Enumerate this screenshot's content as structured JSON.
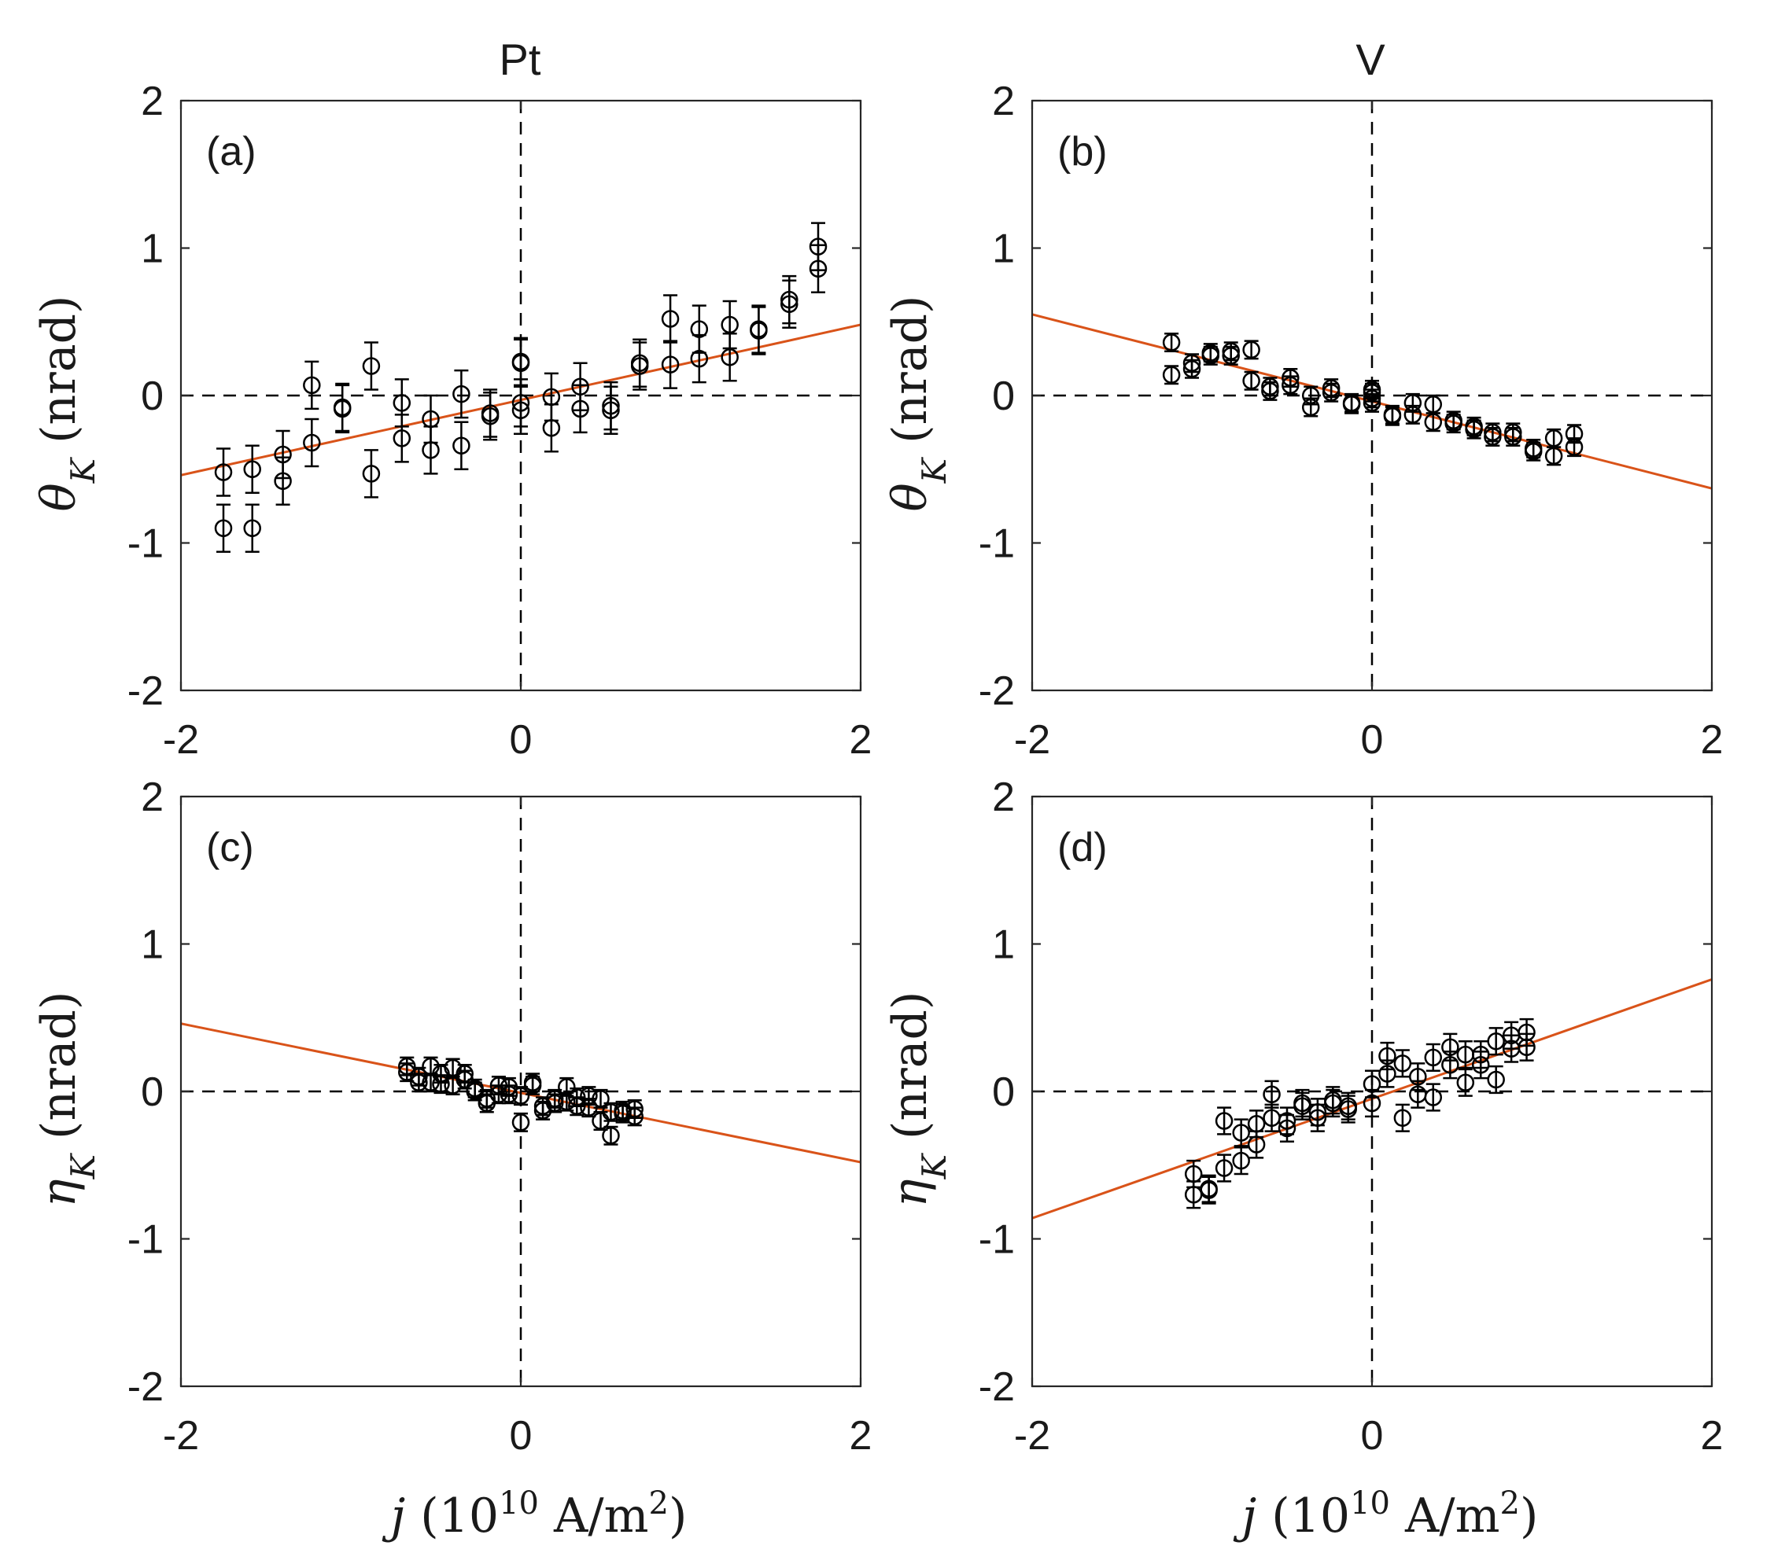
{
  "columns": [
    {
      "title": "Pt"
    },
    {
      "title": "V"
    }
  ],
  "x_axis_label": {
    "symbol": "j",
    "open": " (10",
    "exponent": "10",
    "mid": " A/m",
    "exponent2": "2",
    "close": ")"
  },
  "y_axis_labels": {
    "theta": {
      "symbol": "θ",
      "sub": "K",
      "unit": " (nrad)"
    },
    "eta": {
      "symbol": "η",
      "sub": "K",
      "unit": " (nrad)"
    }
  },
  "colors": {
    "fit": "#d95319",
    "data": "#000000",
    "reference": "#000000"
  },
  "chart_data": [
    {
      "type": "scatter",
      "panel": "(a)",
      "title": "Pt",
      "xlabel": "j (10^10 A/m^2)",
      "ylabel": "θK (nrad)",
      "xlim": [
        -2,
        2
      ],
      "ylim": [
        -2,
        2
      ],
      "xticks": [
        -2,
        0,
        2
      ],
      "yticks": [
        -2,
        -1,
        0,
        1,
        2
      ],
      "grid": false,
      "reference_lines": {
        "x": 0,
        "y": 0,
        "style": "dashed"
      },
      "fit": {
        "slope": 0.255,
        "intercept": -0.03
      },
      "error_bar": 0.16,
      "points": [
        [
          -1.75,
          -0.52
        ],
        [
          -1.75,
          -0.9
        ],
        [
          -1.58,
          -0.5
        ],
        [
          -1.58,
          -0.9
        ],
        [
          -1.4,
          -0.4
        ],
        [
          -1.4,
          -0.58
        ],
        [
          -1.23,
          0.07
        ],
        [
          -1.23,
          -0.32
        ],
        [
          -1.05,
          -0.08
        ],
        [
          -1.05,
          -0.09
        ],
        [
          -0.88,
          0.2
        ],
        [
          -0.88,
          -0.53
        ],
        [
          -0.7,
          -0.05
        ],
        [
          -0.7,
          -0.29
        ],
        [
          -0.53,
          -0.16
        ],
        [
          -0.53,
          -0.37
        ],
        [
          -0.35,
          0.01
        ],
        [
          -0.35,
          -0.34
        ],
        [
          -0.18,
          -0.12
        ],
        [
          -0.18,
          -0.14
        ],
        [
          0.0,
          0.22
        ],
        [
          0.0,
          0.23
        ],
        [
          0.0,
          -0.05
        ],
        [
          0.0,
          -0.1
        ],
        [
          0.18,
          -0.01
        ],
        [
          0.18,
          -0.22
        ],
        [
          0.35,
          0.06
        ],
        [
          0.35,
          -0.09
        ],
        [
          0.53,
          -0.07
        ],
        [
          0.53,
          -0.1
        ],
        [
          0.7,
          0.22
        ],
        [
          0.7,
          0.2
        ],
        [
          0.88,
          0.52
        ],
        [
          0.88,
          0.21
        ],
        [
          1.05,
          0.45
        ],
        [
          1.05,
          0.25
        ],
        [
          1.23,
          0.48
        ],
        [
          1.23,
          0.26
        ],
        [
          1.4,
          0.45
        ],
        [
          1.4,
          0.44
        ],
        [
          1.58,
          0.65
        ],
        [
          1.58,
          0.62
        ],
        [
          1.75,
          1.01
        ],
        [
          1.75,
          0.86
        ]
      ]
    },
    {
      "type": "scatter",
      "panel": "(b)",
      "title": "V",
      "xlabel": "j (10^10 A/m^2)",
      "ylabel": "θK (nrad)",
      "xlim": [
        -2,
        2
      ],
      "ylim": [
        -2,
        2
      ],
      "xticks": [
        -2,
        0,
        2
      ],
      "yticks": [
        -2,
        -1,
        0,
        1,
        2
      ],
      "grid": false,
      "reference_lines": {
        "x": 0,
        "y": 0,
        "style": "dashed"
      },
      "fit": {
        "slope": -0.295,
        "intercept": -0.04
      },
      "error_bar": 0.06,
      "points": [
        [
          -1.18,
          0.36
        ],
        [
          -1.18,
          0.14
        ],
        [
          -1.06,
          0.22
        ],
        [
          -1.06,
          0.18
        ],
        [
          -0.95,
          0.29
        ],
        [
          -0.95,
          0.27
        ],
        [
          -0.83,
          0.3
        ],
        [
          -0.83,
          0.27
        ],
        [
          -0.71,
          0.31
        ],
        [
          -0.71,
          0.1
        ],
        [
          -0.6,
          0.06
        ],
        [
          -0.6,
          0.03
        ],
        [
          -0.48,
          0.12
        ],
        [
          -0.48,
          0.07
        ],
        [
          -0.36,
          0.0
        ],
        [
          -0.36,
          -0.08
        ],
        [
          -0.24,
          0.05
        ],
        [
          -0.24,
          0.02
        ],
        [
          -0.12,
          -0.05
        ],
        [
          -0.12,
          -0.06
        ],
        [
          0.0,
          0.04
        ],
        [
          0.0,
          0.02
        ],
        [
          0.0,
          -0.02
        ],
        [
          0.0,
          -0.05
        ],
        [
          0.12,
          -0.13
        ],
        [
          0.12,
          -0.14
        ],
        [
          0.24,
          -0.05
        ],
        [
          0.24,
          -0.13
        ],
        [
          0.36,
          -0.06
        ],
        [
          0.36,
          -0.18
        ],
        [
          0.48,
          -0.17
        ],
        [
          0.48,
          -0.19
        ],
        [
          0.6,
          -0.21
        ],
        [
          0.6,
          -0.23
        ],
        [
          0.71,
          -0.25
        ],
        [
          0.71,
          -0.28
        ],
        [
          0.83,
          -0.25
        ],
        [
          0.83,
          -0.28
        ],
        [
          0.95,
          -0.36
        ],
        [
          0.95,
          -0.38
        ],
        [
          1.07,
          -0.29
        ],
        [
          1.07,
          -0.41
        ],
        [
          1.19,
          -0.26
        ],
        [
          1.19,
          -0.35
        ]
      ]
    },
    {
      "type": "scatter",
      "panel": "(c)",
      "title": "",
      "xlabel": "j (10^10 A/m^2)",
      "ylabel": "ηK (nrad)",
      "xlim": [
        -2,
        2
      ],
      "ylim": [
        -2,
        2
      ],
      "xticks": [
        -2,
        0,
        2
      ],
      "yticks": [
        -2,
        -1,
        0,
        1,
        2
      ],
      "grid": false,
      "reference_lines": {
        "x": 0,
        "y": 0,
        "style": "dashed"
      },
      "fit": {
        "slope": -0.235,
        "intercept": -0.01
      },
      "error_bar": 0.06,
      "points": [
        [
          -0.67,
          0.17
        ],
        [
          -0.67,
          0.13
        ],
        [
          -0.6,
          0.1
        ],
        [
          -0.6,
          0.06
        ],
        [
          -0.53,
          0.17
        ],
        [
          -0.53,
          0.06
        ],
        [
          -0.47,
          0.12
        ],
        [
          -0.47,
          0.05
        ],
        [
          -0.4,
          0.16
        ],
        [
          -0.4,
          0.04
        ],
        [
          -0.33,
          0.12
        ],
        [
          -0.33,
          0.08
        ],
        [
          -0.27,
          0.02
        ],
        [
          -0.27,
          0.0
        ],
        [
          -0.2,
          -0.08
        ],
        [
          -0.2,
          -0.05
        ],
        [
          -0.13,
          -0.02
        ],
        [
          -0.13,
          0.04
        ],
        [
          -0.07,
          0.03
        ],
        [
          -0.07,
          -0.02
        ],
        [
          0.0,
          -0.03
        ],
        [
          0.0,
          -0.21
        ],
        [
          0.07,
          0.06
        ],
        [
          0.07,
          0.04
        ],
        [
          0.13,
          -0.1
        ],
        [
          0.13,
          -0.13
        ],
        [
          0.2,
          -0.08
        ],
        [
          0.2,
          -0.05
        ],
        [
          0.27,
          0.03
        ],
        [
          0.27,
          -0.07
        ],
        [
          0.33,
          -0.04
        ],
        [
          0.33,
          -0.1
        ],
        [
          0.4,
          -0.03
        ],
        [
          0.4,
          -0.11
        ],
        [
          0.47,
          -0.2
        ],
        [
          0.47,
          -0.05
        ],
        [
          0.53,
          -0.3
        ],
        [
          0.53,
          -0.14
        ],
        [
          0.6,
          -0.13
        ],
        [
          0.6,
          -0.15
        ],
        [
          0.67,
          -0.12
        ],
        [
          0.67,
          -0.17
        ]
      ]
    },
    {
      "type": "scatter",
      "panel": "(d)",
      "title": "",
      "xlabel": "j (10^10 A/m^2)",
      "ylabel": "ηK (nrad)",
      "xlim": [
        -2,
        2
      ],
      "ylim": [
        -2,
        2
      ],
      "xticks": [
        -2,
        0,
        2
      ],
      "yticks": [
        -2,
        -1,
        0,
        1,
        2
      ],
      "grid": false,
      "reference_lines": {
        "x": 0,
        "y": 0,
        "style": "dashed"
      },
      "fit": {
        "slope": 0.405,
        "intercept": -0.05
      },
      "error_bar": 0.09,
      "points": [
        [
          -1.05,
          -0.56
        ],
        [
          -1.05,
          -0.7
        ],
        [
          -0.96,
          -0.66
        ],
        [
          -0.96,
          -0.67
        ],
        [
          -0.87,
          -0.2
        ],
        [
          -0.87,
          -0.52
        ],
        [
          -0.77,
          -0.28
        ],
        [
          -0.77,
          -0.47
        ],
        [
          -0.68,
          -0.22
        ],
        [
          -0.68,
          -0.36
        ],
        [
          -0.59,
          -0.02
        ],
        [
          -0.59,
          -0.18
        ],
        [
          -0.5,
          -0.25
        ],
        [
          -0.5,
          -0.2
        ],
        [
          -0.41,
          -0.08
        ],
        [
          -0.41,
          -0.1
        ],
        [
          -0.32,
          -0.18
        ],
        [
          -0.32,
          -0.14
        ],
        [
          -0.23,
          -0.08
        ],
        [
          -0.23,
          -0.06
        ],
        [
          -0.14,
          -0.12
        ],
        [
          -0.14,
          -0.1
        ],
        [
          0.0,
          0.05
        ],
        [
          0.0,
          -0.08
        ],
        [
          0.09,
          0.24
        ],
        [
          0.09,
          0.12
        ],
        [
          0.18,
          0.19
        ],
        [
          0.18,
          -0.18
        ],
        [
          0.27,
          0.1
        ],
        [
          0.27,
          -0.02
        ],
        [
          0.36,
          0.23
        ],
        [
          0.36,
          -0.04
        ],
        [
          0.46,
          0.3
        ],
        [
          0.46,
          0.18
        ],
        [
          0.55,
          0.06
        ],
        [
          0.55,
          0.25
        ],
        [
          0.64,
          0.25
        ],
        [
          0.64,
          0.18
        ],
        [
          0.73,
          0.34
        ],
        [
          0.73,
          0.08
        ],
        [
          0.82,
          0.38
        ],
        [
          0.82,
          0.29
        ],
        [
          0.91,
          0.4
        ],
        [
          0.91,
          0.3
        ]
      ]
    }
  ]
}
